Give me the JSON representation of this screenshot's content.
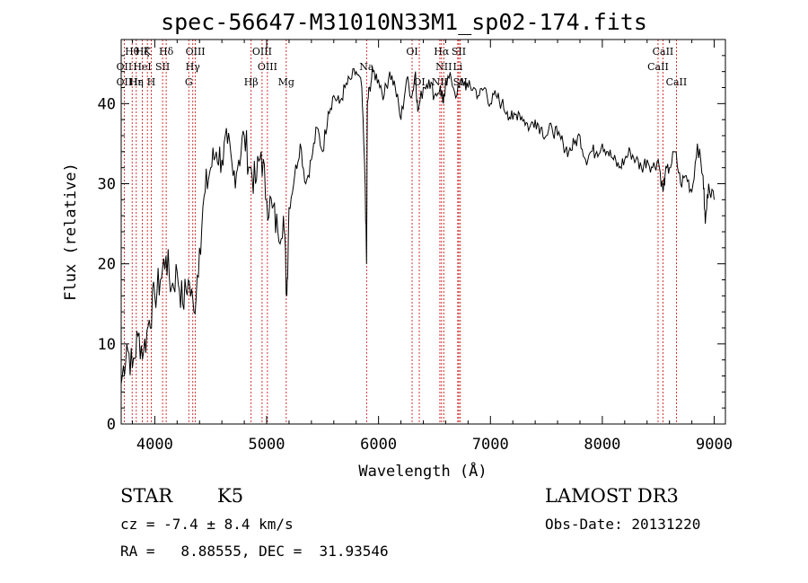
{
  "chart_data": {
    "type": "line",
    "title": "spec-56647-M31010N33M1_sp02-174.fits",
    "xlabel": "Wavelength (Å)",
    "ylabel": "Flux (relative)",
    "xlim": [
      3700,
      9100
    ],
    "ylim": [
      0,
      48
    ],
    "xticks": [
      4000,
      5000,
      6000,
      7000,
      8000,
      9000
    ],
    "yticks": [
      0,
      10,
      20,
      30,
      40
    ],
    "xtick_labels": [
      "4000",
      "5000",
      "6000",
      "7000",
      "8000",
      "9000"
    ],
    "ytick_labels": [
      "0",
      "10",
      "20",
      "30",
      "40"
    ],
    "series": [
      {
        "name": "flux",
        "x": [
          3700,
          3750,
          3800,
          3850,
          3900,
          3950,
          4000,
          4050,
          4100,
          4150,
          4200,
          4250,
          4300,
          4350,
          4400,
          4450,
          4500,
          4550,
          4600,
          4650,
          4700,
          4750,
          4800,
          4850,
          4900,
          4950,
          5000,
          5050,
          5100,
          5150,
          5180,
          5200,
          5250,
          5300,
          5350,
          5400,
          5450,
          5500,
          5550,
          5600,
          5650,
          5700,
          5750,
          5800,
          5850,
          5880,
          5893,
          5900,
          5920,
          5950,
          6000,
          6050,
          6100,
          6150,
          6200,
          6250,
          6300,
          6330,
          6350,
          6400,
          6450,
          6500,
          6550,
          6563,
          6580,
          6600,
          6650,
          6700,
          6750,
          6800,
          6850,
          6900,
          6950,
          7000,
          7050,
          7100,
          7150,
          7200,
          7250,
          7300,
          7350,
          7400,
          7450,
          7500,
          7550,
          7600,
          7650,
          7700,
          7750,
          7800,
          7850,
          7900,
          7950,
          8000,
          8050,
          8100,
          8150,
          8200,
          8250,
          8300,
          8350,
          8400,
          8450,
          8500,
          8542,
          8560,
          8600,
          8650,
          8700,
          8750,
          8800,
          8850,
          8900,
          8920,
          8950,
          9000
        ],
        "y": [
          5,
          10,
          7,
          11,
          9,
          13,
          16,
          18,
          21,
          17,
          19,
          15,
          18,
          14,
          22,
          29,
          32,
          34,
          33,
          35,
          31,
          33,
          36,
          32,
          30,
          34,
          28,
          27,
          24,
          26,
          16,
          27,
          31,
          35,
          30,
          33,
          37,
          34,
          39,
          41,
          40,
          42,
          43,
          44,
          42,
          30,
          20,
          40,
          42,
          44,
          43,
          41,
          44,
          42,
          38,
          43,
          41,
          44,
          39,
          42,
          43,
          41,
          42,
          41,
          40,
          43,
          43,
          41,
          43,
          42,
          42,
          41,
          42,
          40,
          41,
          40,
          39,
          38,
          39,
          38,
          37,
          38,
          37,
          36,
          37,
          36,
          35,
          34,
          35,
          36,
          33,
          34,
          34,
          35,
          34,
          33,
          32,
          33,
          34,
          33,
          32,
          33,
          32,
          33,
          29,
          31,
          32,
          34,
          30,
          31,
          29,
          35,
          31,
          25,
          30,
          28
        ]
      }
    ],
    "line_markers": [
      {
        "label": "Hθ",
        "wl": 3798,
        "row": 0
      },
      {
        "label": "Hζ",
        "wl": 3889,
        "row": 0
      },
      {
        "label": "K",
        "wl": 3934,
        "row": 0
      },
      {
        "label": "Hδ",
        "wl": 4102,
        "row": 0
      },
      {
        "label": "OIII",
        "wl": 4363,
        "row": 0
      },
      {
        "label": "OIII",
        "wl": 4959,
        "row": 0
      },
      {
        "label": "OI",
        "wl": 6300,
        "row": 0
      },
      {
        "label": "Hα",
        "wl": 6563,
        "row": 0
      },
      {
        "label": "SII",
        "wl": 6717,
        "row": 0
      },
      {
        "label": "CaII",
        "wl": 8542,
        "row": 0
      },
      {
        "label": "OII",
        "wl": 3727,
        "row": 1
      },
      {
        "label": "HeI",
        "wl": 3889,
        "row": 1
      },
      {
        "label": "SII",
        "wl": 4070,
        "row": 1
      },
      {
        "label": "Hγ",
        "wl": 4340,
        "row": 1
      },
      {
        "label": "OIII",
        "wl": 5007,
        "row": 1
      },
      {
        "label": "Na",
        "wl": 5893,
        "row": 1
      },
      {
        "label": "NII",
        "wl": 6583,
        "row": 1
      },
      {
        "label": "Li",
        "wl": 6708,
        "row": 1
      },
      {
        "label": "CaII",
        "wl": 8498,
        "row": 1
      },
      {
        "label": "OII",
        "wl": 3727,
        "row": 2
      },
      {
        "label": "Hε",
        "wl": 3835,
        "row": 2
      },
      {
        "label": "Hη",
        "wl": 3835,
        "row": 2
      },
      {
        "label": "H",
        "wl": 3968,
        "row": 2
      },
      {
        "label": "G",
        "wl": 4304,
        "row": 2
      },
      {
        "label": "Hβ",
        "wl": 4861,
        "row": 2
      },
      {
        "label": "Mg",
        "wl": 5175,
        "row": 2
      },
      {
        "label": "OI",
        "wl": 6364,
        "row": 2
      },
      {
        "label": "NII",
        "wl": 6548,
        "row": 2
      },
      {
        "label": "SII",
        "wl": 6731,
        "row": 2
      },
      {
        "label": "CaII",
        "wl": 8662,
        "row": 2
      }
    ]
  },
  "info": {
    "class_label": "STAR",
    "subclass_label": "K5",
    "survey": "LAMOST DR3",
    "cz_line": "cz = -7.4 ± 8.4 km/s",
    "obs_date_line": "Obs-Date: 20131220",
    "radec_line": "RA =   8.88555, DEC =  31.93546"
  }
}
